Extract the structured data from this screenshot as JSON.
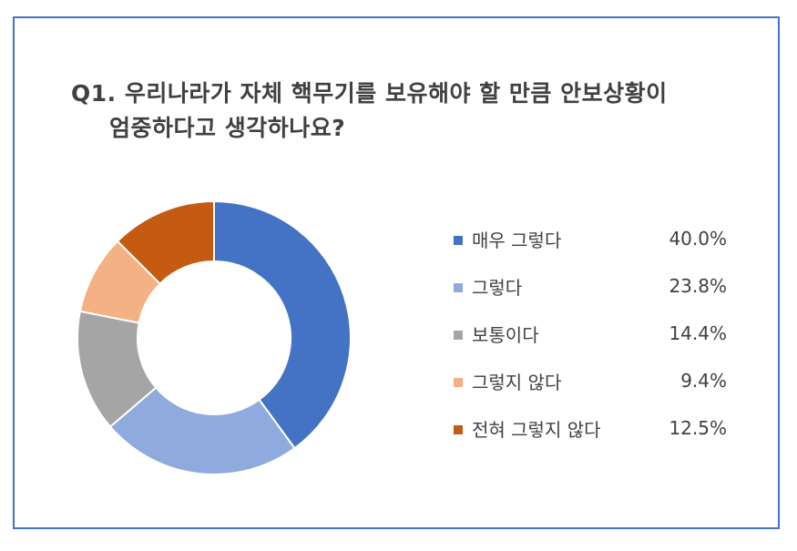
{
  "chart_data": {
    "type": "pie",
    "title": "Q1. 우리나라가 자체 핵무기를 보유해야 할 만큼 안보상황이 엄중하다고 생각하나요?",
    "title_lines": [
      "Q1. 우리나라가 자체 핵무기를 보유해야 할 만큼 안보상황이",
      "엄중하다고 생각하나요?"
    ],
    "categories": [
      "매우 그렇다",
      "그렇다",
      "보통이다",
      "그렇지 않다",
      "전혀 그렇지 않다"
    ],
    "values": [
      40.0,
      23.8,
      14.4,
      9.4,
      12.5
    ],
    "labels": [
      "40.0%",
      "23.8%",
      "14.4%",
      "9.4%",
      "12.5%"
    ],
    "colors": [
      "#4472c4",
      "#8faadc",
      "#a5a5a5",
      "#f4b183",
      "#c55a11"
    ],
    "unit": "%",
    "hole": "donut",
    "legend_position": "right",
    "start_angle": "top (12 o'clock), clockwise",
    "frame_color": "#4472c4"
  }
}
